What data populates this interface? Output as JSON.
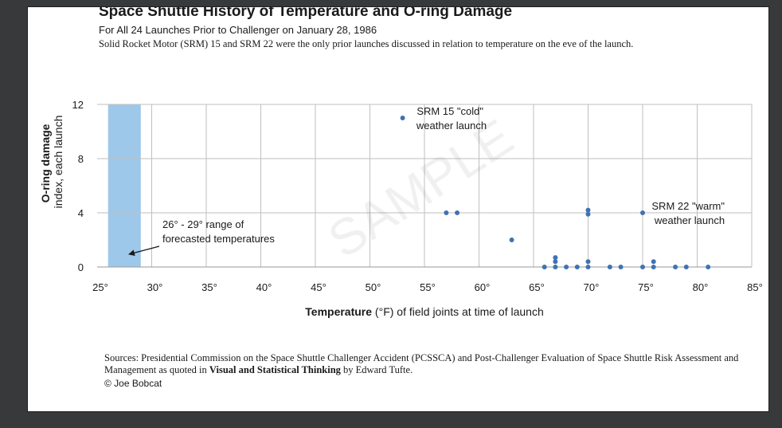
{
  "title": "Space Shuttle History of Temperature and O-ring Damage",
  "subtitle": "For All 24 Launches Prior to Challenger on January 28, 1986",
  "note": "Solid Rocket Motor (SRM) 15 and SRM 22 were the only prior launches discussed in relation to temperature on the eve of the launch.",
  "sources": {
    "prefix": "Sources:  Presidential Commission on the Space Shuttle Challenger Accident (PCSSCA) and Post-Challenger Evaluation of Space Shuttle Risk Assessment and Management as quoted in ",
    "book": "Visual and Statistical Thinking",
    "suffix": " by Edward Tufte."
  },
  "credit": "© Joe Bobcat",
  "watermark": "SAMPLE",
  "chart_data": {
    "type": "scatter",
    "xlabel_bold": "Temperature",
    "xlabel_rest": " (°F) of field joints at time of launch",
    "ylabel_bold": "O-ring damage",
    "ylabel_rest": "index, each launch",
    "xlim": [
      25,
      85
    ],
    "ylim": [
      0,
      12
    ],
    "x_ticks": [
      25,
      30,
      35,
      40,
      45,
      50,
      55,
      60,
      65,
      70,
      75,
      80,
      85
    ],
    "x_tick_labels": [
      "25°",
      "30°",
      "35°",
      "40°",
      "45°",
      "50°",
      "55°",
      "60°",
      "65°",
      "70°",
      "75°",
      "80°",
      "85°"
    ],
    "y_ticks": [
      0,
      4,
      8,
      12
    ],
    "y_tick_labels": [
      "0",
      "4",
      "8",
      "12"
    ],
    "grid": true,
    "marker_color": "#3f72b5",
    "highlight_range": {
      "x": [
        26,
        29
      ],
      "label_line1": "26° - 29° range of",
      "label_line2": "forecasted temperatures",
      "color": "#9ec8ea"
    },
    "points": [
      {
        "x": 53,
        "y": 11
      },
      {
        "x": 57,
        "y": 4
      },
      {
        "x": 58,
        "y": 4
      },
      {
        "x": 63,
        "y": 2
      },
      {
        "x": 66,
        "y": 0
      },
      {
        "x": 67,
        "y": 0
      },
      {
        "x": 67,
        "y": 0.4
      },
      {
        "x": 67,
        "y": 0.7
      },
      {
        "x": 68,
        "y": 0
      },
      {
        "x": 69,
        "y": 0
      },
      {
        "x": 70,
        "y": 0
      },
      {
        "x": 70,
        "y": 0.4
      },
      {
        "x": 70,
        "y": 3.9
      },
      {
        "x": 70,
        "y": 4.2
      },
      {
        "x": 72,
        "y": 0
      },
      {
        "x": 73,
        "y": 0
      },
      {
        "x": 75,
        "y": 0
      },
      {
        "x": 75,
        "y": 4
      },
      {
        "x": 76,
        "y": 0
      },
      {
        "x": 76,
        "y": 0.4
      },
      {
        "x": 78,
        "y": 0
      },
      {
        "x": 79,
        "y": 0
      },
      {
        "x": 81,
        "y": 0
      }
    ],
    "annotations": [
      {
        "name": "srm15-annotation",
        "line1": "SRM 15 \"cold\"",
        "line2": "weather launch"
      },
      {
        "name": "srm22-annotation",
        "line1": "SRM 22 \"warm\"",
        "line2": "weather launch"
      }
    ]
  }
}
